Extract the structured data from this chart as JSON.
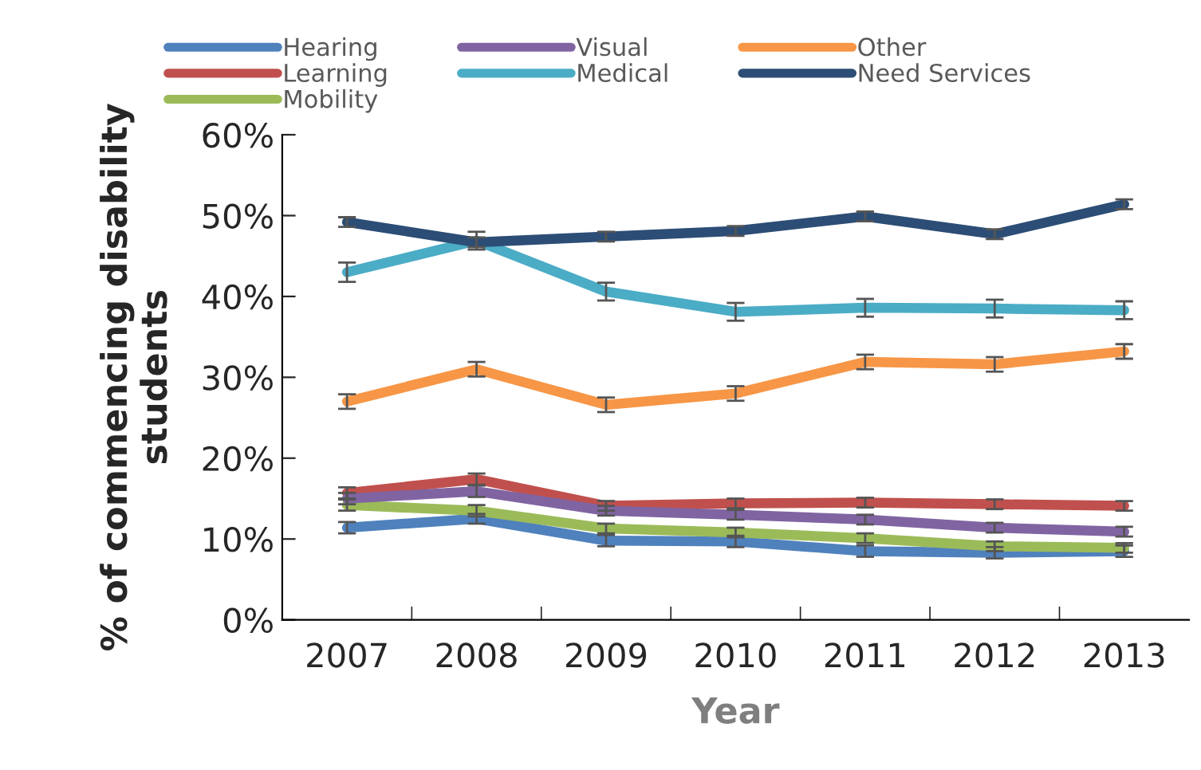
{
  "chart_data": {
    "type": "line",
    "xlabel": "Year",
    "ylabel": "% of commencing disability\nstudents",
    "categories": [
      "2007",
      "2008",
      "2009",
      "2010",
      "2011",
      "2012",
      "2013"
    ],
    "series": [
      {
        "name": "Hearing",
        "color": "#4f81bd",
        "values": [
          11.4,
          12.5,
          9.8,
          9.7,
          8.5,
          8.3,
          8.5
        ],
        "errors": [
          0.7,
          0.6,
          0.7,
          0.7,
          0.7,
          0.7,
          0.7
        ]
      },
      {
        "name": "Learning",
        "color": "#c0504d",
        "values": [
          15.7,
          17.4,
          14.1,
          14.4,
          14.5,
          14.3,
          14.1
        ],
        "errors": [
          0.7,
          0.7,
          0.6,
          0.6,
          0.6,
          0.6,
          0.6
        ]
      },
      {
        "name": "Mobility",
        "color": "#9bbb59",
        "values": [
          14.2,
          13.5,
          11.3,
          10.8,
          10.1,
          9.1,
          8.9
        ],
        "errors": [
          0.7,
          0.7,
          0.6,
          0.6,
          0.6,
          0.6,
          0.6
        ]
      },
      {
        "name": "Visual",
        "color": "#8064a2",
        "values": [
          15.0,
          15.9,
          13.5,
          13.0,
          12.4,
          11.4,
          10.9
        ],
        "errors": [
          0.7,
          0.7,
          0.6,
          0.6,
          0.6,
          0.6,
          0.6
        ]
      },
      {
        "name": "Medical",
        "color": "#4bacc6",
        "values": [
          43.0,
          46.9,
          40.6,
          38.1,
          38.6,
          38.5,
          38.3
        ],
        "errors": [
          1.2,
          1.1,
          1.1,
          1.1,
          1.1,
          1.1,
          1.1
        ]
      },
      {
        "name": "Other",
        "color": "#f79646",
        "values": [
          27.0,
          31.0,
          26.6,
          28.0,
          31.9,
          31.6,
          33.2
        ],
        "errors": [
          0.9,
          0.9,
          0.9,
          0.9,
          0.9,
          0.9,
          0.9
        ]
      },
      {
        "name": "Need Services",
        "color": "#2c4d75",
        "values": [
          49.2,
          46.7,
          47.4,
          48.1,
          49.9,
          47.7,
          51.4
        ],
        "errors": [
          0.6,
          0.6,
          0.6,
          0.6,
          0.6,
          0.6,
          0.6
        ]
      }
    ],
    "ylim": [
      0,
      60
    ],
    "yticks": [
      {
        "value": 0,
        "label": "0%"
      },
      {
        "value": 10,
        "label": "10%"
      },
      {
        "value": 20,
        "label": "20%"
      },
      {
        "value": 30,
        "label": "30%"
      },
      {
        "value": 40,
        "label": "40%"
      },
      {
        "value": 50,
        "label": "50%"
      },
      {
        "value": 60,
        "label": "60%"
      }
    ],
    "grid": false,
    "legend": "top",
    "marker": "none",
    "line_style": "solid"
  }
}
